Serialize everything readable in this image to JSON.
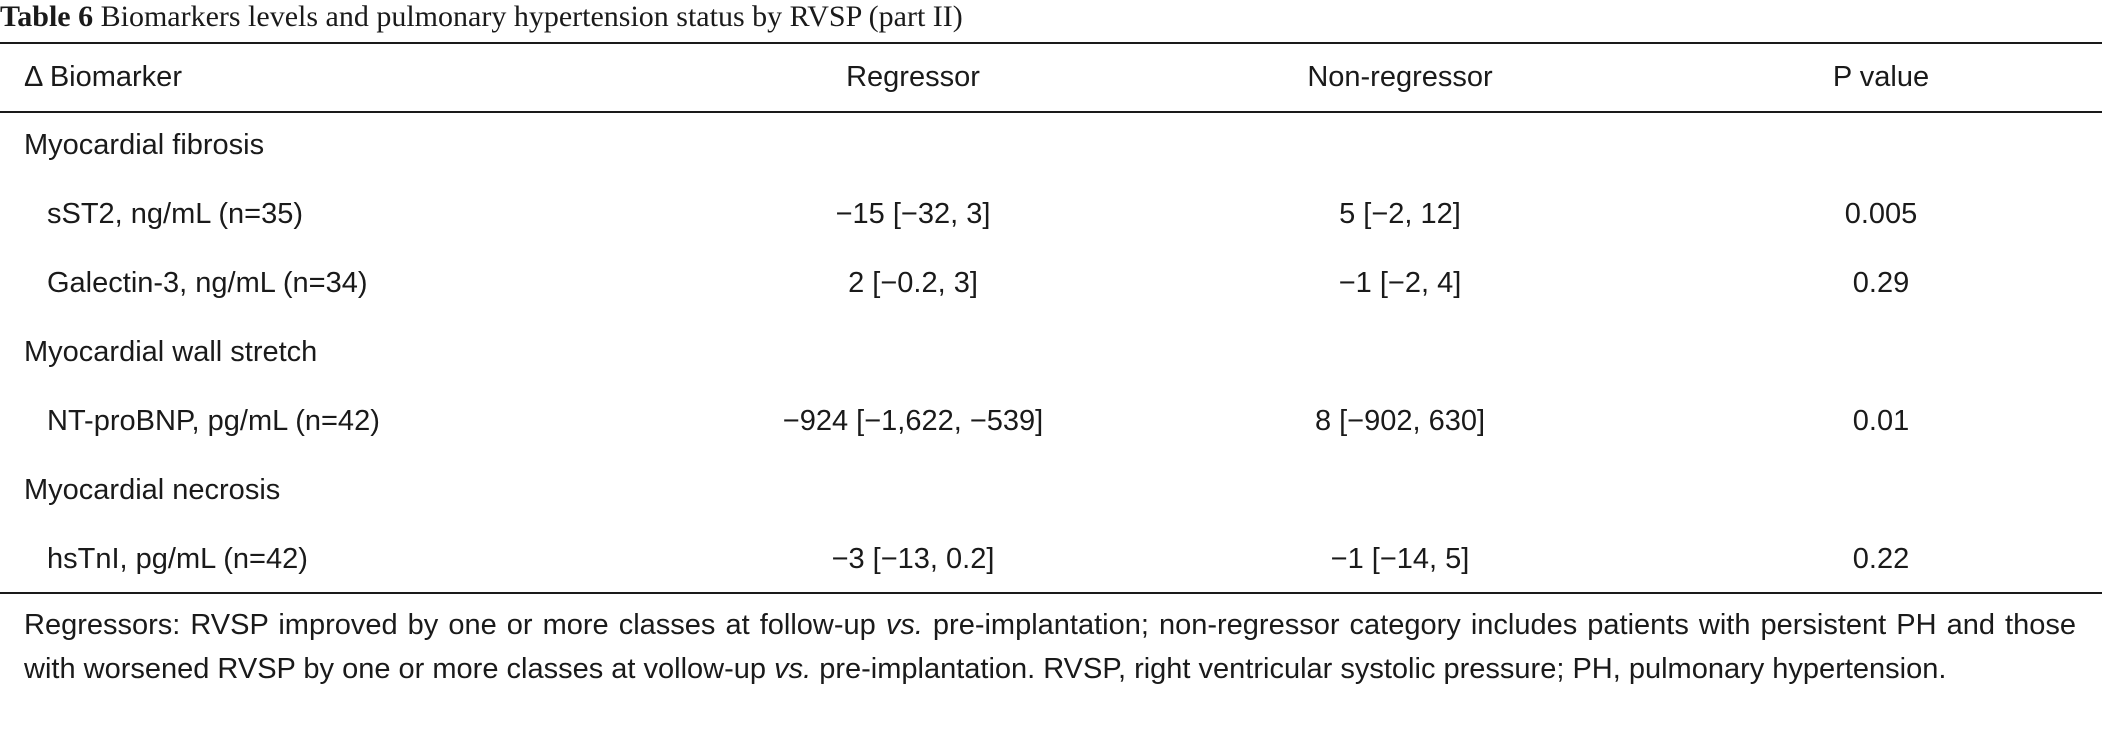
{
  "caption": {
    "label": "Table 6",
    "title": " Biomarkers levels and pulmonary hypertension status by RVSP (part II)"
  },
  "table": {
    "headers": [
      "Δ Biomarker",
      "Regressor",
      "Non-regressor",
      "P value"
    ],
    "sections": [
      {
        "category": "Myocardial fibrosis",
        "rows": [
          {
            "name": "sST2, ng/mL (n=35)",
            "regressor": "−15 [−32, 3]",
            "non_regressor": "5 [−2, 12]",
            "p": "0.005"
          },
          {
            "name": "Galectin-3, ng/mL (n=34)",
            "regressor": "2 [−0.2, 3]",
            "non_regressor": "−1 [−2, 4]",
            "p": "0.29"
          }
        ]
      },
      {
        "category": "Myocardial wall stretch",
        "rows": [
          {
            "name": "NT-proBNP, pg/mL (n=42)",
            "regressor": "−924 [−1,622, −539]",
            "non_regressor": "8 [−902, 630]",
            "p": "0.01"
          }
        ]
      },
      {
        "category": "Myocardial necrosis",
        "rows": [
          {
            "name": "hsTnI, pg/mL (n=42)",
            "regressor": "−3 [−13, 0.2]",
            "non_regressor": "−1 [−14, 5]",
            "p": "0.22"
          }
        ]
      }
    ]
  },
  "footnote": {
    "part1": "Regressors: RVSP improved by one or more classes at follow-up ",
    "vs1": "vs.",
    "part2": " pre-implantation; non-regressor category includes patients with persistent PH and those with worsened RVSP by one or more classes at vollow-up ",
    "vs2": "vs.",
    "part3": " pre-implantation. RVSP, right ventricular systolic pressure; PH, pulmonary hypertension."
  }
}
